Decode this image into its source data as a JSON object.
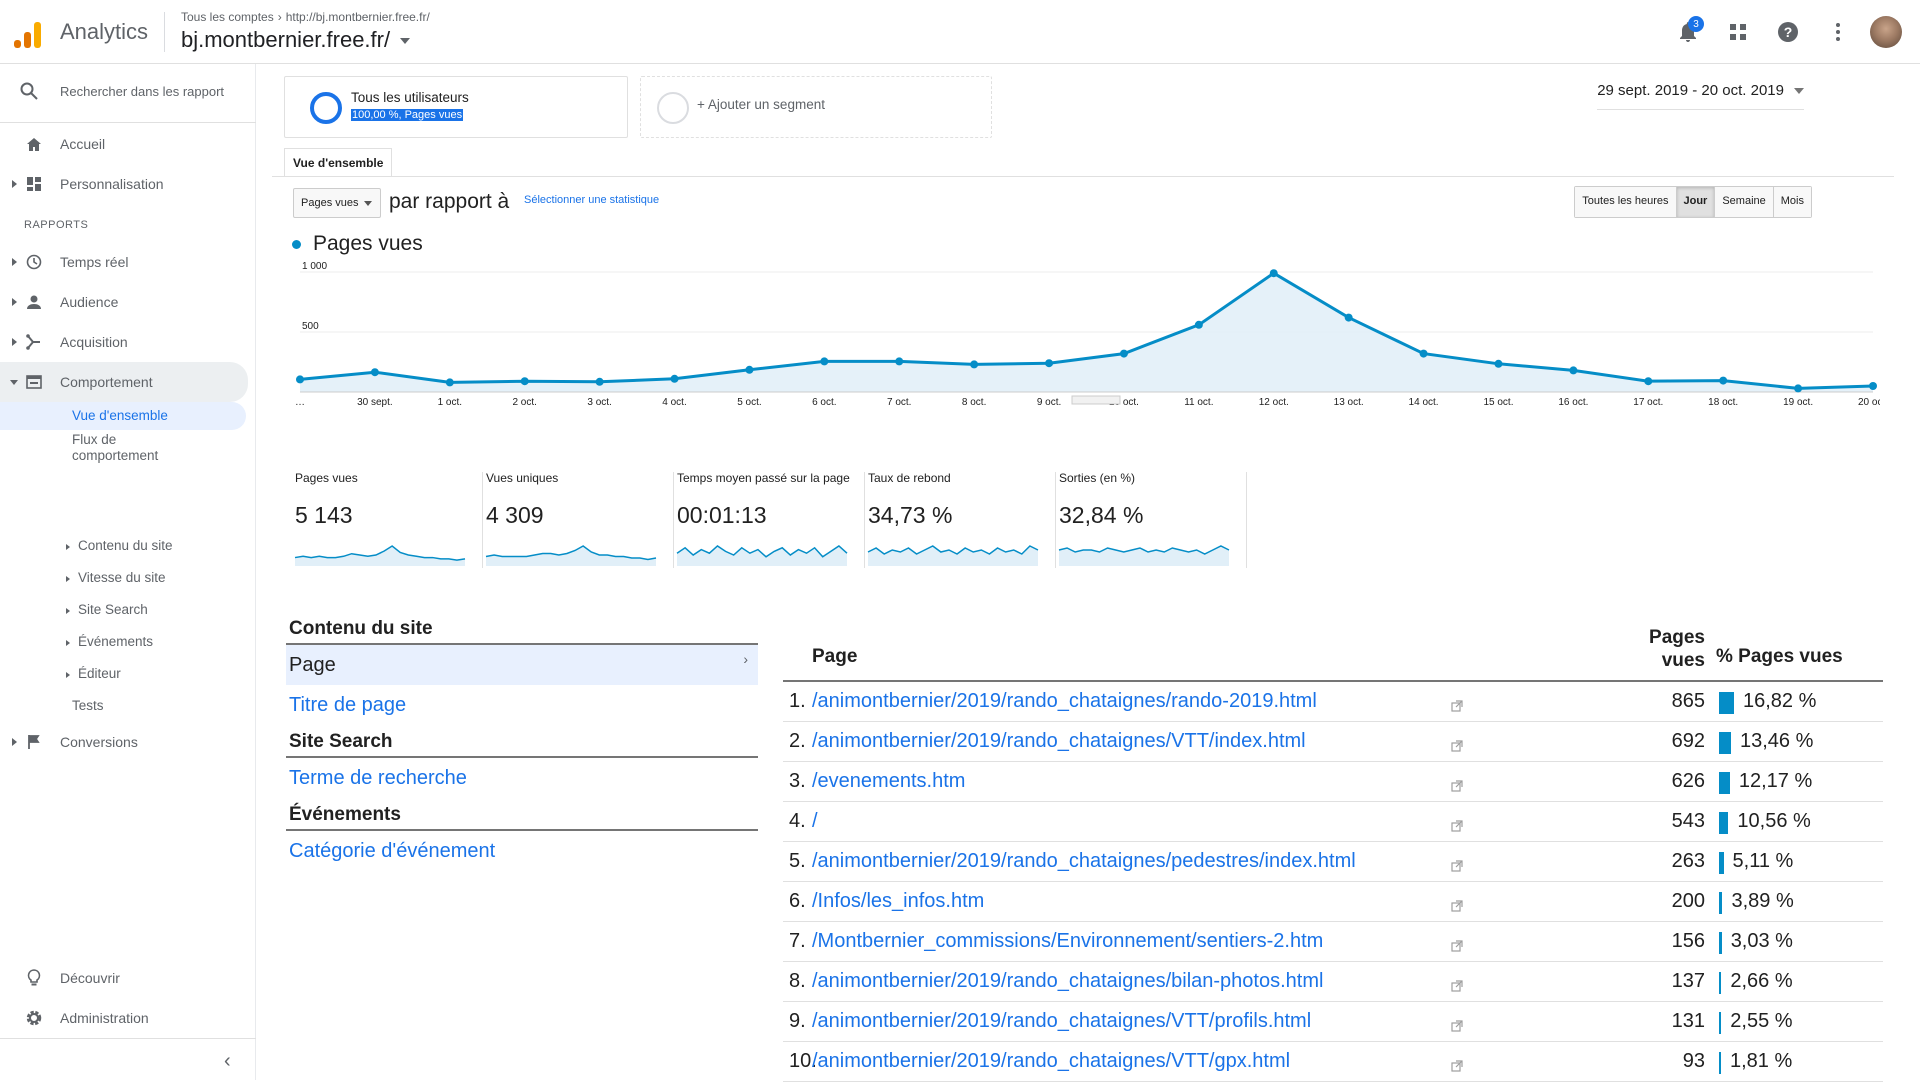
{
  "header": {
    "app_name": "Analytics",
    "breadcrumb": [
      "Tous les comptes",
      "http://bj.montbernier.free.fr/"
    ],
    "property": "bj.montbernier.free.fr/",
    "notification_count": "3",
    "icons": [
      "notifications-icon",
      "apps-icon",
      "help-icon",
      "more-vert-icon",
      "avatar"
    ]
  },
  "sidebar": {
    "search_placeholder": "Rechercher dans les rapport",
    "home": "Accueil",
    "customization": "Personnalisation",
    "reports_label": "RAPPORTS",
    "realtime": "Temps réel",
    "audience": "Audience",
    "acquisition": "Acquisition",
    "behavior": "Comportement",
    "behavior_sub": {
      "overview": "Vue d'ensemble",
      "flow_line1": "Flux de",
      "flow_line2": "comportement",
      "site_content": "Contenu du site",
      "site_speed": "Vitesse du site",
      "site_search": "Site Search",
      "events": "Événements",
      "publisher": "Éditeur",
      "experiments": "Tests"
    },
    "conversions": "Conversions",
    "discover": "Découvrir",
    "admin": "Administration"
  },
  "segments": {
    "active_title": "Tous les utilisateurs",
    "active_sub": "100,00 %, Pages vues",
    "add": "+ Ajouter un segment"
  },
  "date_range": "29 sept. 2019 - 20 oct. 2019",
  "tab": "Vue d'ensemble",
  "metric_selector": "Pages vues",
  "versus": "par rapport à",
  "select_metric": "Sélectionner une statistique",
  "granularity": [
    "Toutes les heures",
    "Jour",
    "Semaine",
    "Mois"
  ],
  "granularity_active": "Jour",
  "legend": "Pages vues",
  "chart_data": {
    "type": "area",
    "series": [
      {
        "name": "Pages vues",
        "values": [
          105,
          165,
          80,
          90,
          85,
          110,
          185,
          255,
          255,
          230,
          240,
          320,
          560,
          990,
          620,
          320,
          235,
          180,
          90,
          95,
          30,
          50
        ]
      }
    ],
    "x": [
      "…",
      "30 sept.",
      "1 oct.",
      "2 oct.",
      "3 oct.",
      "4 oct.",
      "5 oct.",
      "6 oct.",
      "7 oct.",
      "8 oct.",
      "9 oct.",
      "10 oct.",
      "11 oct.",
      "12 oct.",
      "13 oct.",
      "14 oct.",
      "15 oct.",
      "16 oct.",
      "17 oct.",
      "18 oct.",
      "19 oct.",
      "20 oct."
    ],
    "yticks": [
      "1 000",
      "500"
    ],
    "ylim": [
      0,
      1000
    ],
    "color": "#058dc7"
  },
  "scorecards": [
    {
      "label": "Pages vues",
      "value": "5 143",
      "spark": [
        5,
        6,
        5,
        6,
        5,
        5,
        6,
        8,
        7,
        6,
        7,
        10,
        14,
        9,
        7,
        6,
        5,
        5,
        4,
        4,
        3,
        4
      ]
    },
    {
      "label": "Vues uniques",
      "value": "4 309",
      "spark": [
        5,
        6,
        5,
        5,
        5,
        5,
        6,
        7,
        7,
        6,
        7,
        9,
        12,
        8,
        6,
        6,
        5,
        5,
        4,
        4,
        3,
        4
      ]
    },
    {
      "label": "Temps moyen passé sur la page",
      "value": "00:01:13",
      "spark": [
        6,
        9,
        5,
        8,
        6,
        10,
        7,
        5,
        9,
        6,
        8,
        4,
        7,
        9,
        5,
        8,
        6,
        9,
        4,
        7,
        10,
        6
      ]
    },
    {
      "label": "Taux de rebond",
      "value": "34,73 %",
      "spark": [
        6,
        8,
        5,
        7,
        6,
        8,
        5,
        7,
        9,
        6,
        7,
        5,
        8,
        6,
        7,
        5,
        8,
        6,
        7,
        5,
        9,
        7
      ]
    },
    {
      "label": "Sorties (en %)",
      "value": "32,84 %",
      "spark": [
        7,
        8,
        6,
        7,
        7,
        6,
        8,
        7,
        6,
        7,
        8,
        6,
        7,
        6,
        8,
        7,
        6,
        7,
        5,
        7,
        9,
        7
      ]
    }
  ],
  "report_nav": {
    "site_content_h": "Contenu du site",
    "page": "Page",
    "page_title": "Titre de page",
    "site_search_h": "Site Search",
    "search_term": "Terme de recherche",
    "events_h": "Événements",
    "event_category": "Catégorie d'événement"
  },
  "table": {
    "col_page": "Page",
    "col_pv_line1": "Pages",
    "col_pv_line2": "vues",
    "col_pct": "% Pages vues",
    "rows": [
      {
        "idx": "1.",
        "path": "/animontbernier/2019/rando_chataignes/rando-2019.html",
        "pv": "865",
        "pct": "16,82 %",
        "share": 16.82
      },
      {
        "idx": "2.",
        "path": "/animontbernier/2019/rando_chataignes/VTT/index.html",
        "pv": "692",
        "pct": "13,46 %",
        "share": 13.46
      },
      {
        "idx": "3.",
        "path": "/evenements.htm",
        "pv": "626",
        "pct": "12,17 %",
        "share": 12.17
      },
      {
        "idx": "4.",
        "path": "/",
        "pv": "543",
        "pct": "10,56 %",
        "share": 10.56
      },
      {
        "idx": "5.",
        "path": "/animontbernier/2019/rando_chataignes/pedestres/index.html",
        "pv": "263",
        "pct": "5,11 %",
        "share": 5.11
      },
      {
        "idx": "6.",
        "path": "/Infos/les_infos.htm",
        "pv": "200",
        "pct": "3,89 %",
        "share": 3.89
      },
      {
        "idx": "7.",
        "path": "/Montbernier_commissions/Environnement/sentiers-2.htm",
        "pv": "156",
        "pct": "3,03 %",
        "share": 3.03
      },
      {
        "idx": "8.",
        "path": "/animontbernier/2019/rando_chataignes/bilan-photos.html",
        "pv": "137",
        "pct": "2,66 %",
        "share": 2.66
      },
      {
        "idx": "9.",
        "path": "/animontbernier/2019/rando_chataignes/VTT/profils.html",
        "pv": "131",
        "pct": "2,55 %",
        "share": 2.55
      },
      {
        "idx": "10.",
        "path": "/animontbernier/2019/rando_chataignes/VTT/gpx.html",
        "pv": "93",
        "pct": "1,81 %",
        "share": 1.81
      }
    ]
  }
}
